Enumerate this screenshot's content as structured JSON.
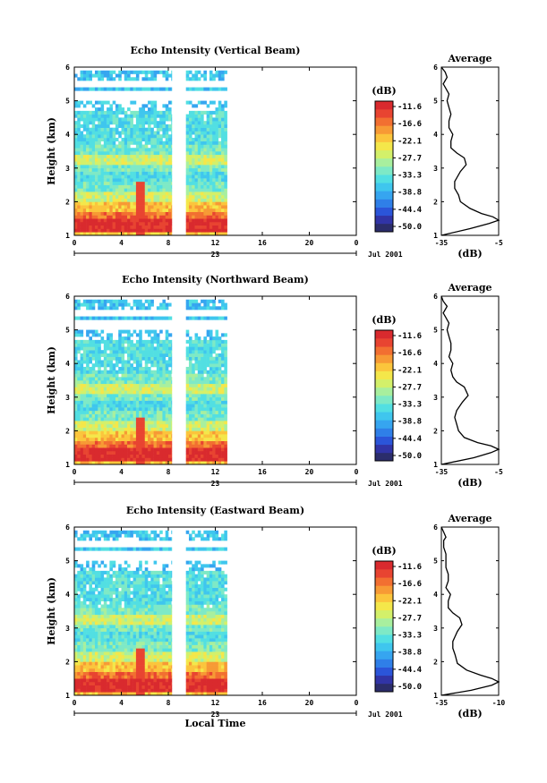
{
  "colors": {
    "colorbar": [
      "#2b2d6b",
      "#3134a6",
      "#2b55d9",
      "#2f7fe8",
      "#36a5f0",
      "#3fc6ee",
      "#52dfe2",
      "#7ee9c6",
      "#a8ef9e",
      "#d3f06a",
      "#f4e74a",
      "#fbc53c",
      "#f79a35",
      "#f26f31",
      "#e84431",
      "#d92a2e"
    ]
  },
  "chart_data": [
    {
      "type": "heatmap",
      "title": "Echo Intensity (Vertical Beam)",
      "ylabel": "Height (km)",
      "xlim": [
        0,
        24
      ],
      "ylim": [
        1,
        6
      ],
      "x_ticks": [
        "0",
        "4",
        "8",
        "12",
        "16",
        "20",
        "0"
      ],
      "y_ticks": [
        "1",
        "2",
        "3",
        "4",
        "5",
        "6"
      ],
      "day_label": "23",
      "date_label": "Jul 2001",
      "data_segments_hours": [
        [
          0,
          8.3
        ],
        [
          9.5,
          13
        ]
      ],
      "colorbar": {
        "unit": "(dB)",
        "labels": [
          "-11.6",
          "-16.6",
          "-22.1",
          "-27.7",
          "-33.3",
          "-38.8",
          "-44.4",
          "-50.0"
        ]
      },
      "profile": {
        "title": "Average",
        "xlabel": "(dB)",
        "x_ticks": [
          "-35",
          "-5"
        ],
        "xlim": [
          -35,
          -5
        ],
        "y_ticks": [
          "1",
          "2",
          "3",
          "4",
          "5",
          "6"
        ],
        "x": [
          -35,
          -20,
          -10,
          -5,
          -8,
          -14,
          -20,
          -25,
          -26,
          -28,
          -28,
          -25,
          -22,
          -23,
          -27,
          -30,
          -30,
          -29,
          -31,
          -31,
          -30,
          -31,
          -32,
          -31,
          -33,
          -34,
          -33,
          -32,
          -33,
          -35
        ],
        "y": [
          1.0,
          1.2,
          1.35,
          1.45,
          1.55,
          1.65,
          1.8,
          2.0,
          2.2,
          2.4,
          2.6,
          2.9,
          3.1,
          3.3,
          3.45,
          3.6,
          3.8,
          4.0,
          4.2,
          4.4,
          4.6,
          4.8,
          5.0,
          5.2,
          5.4,
          5.5,
          5.6,
          5.7,
          5.85,
          6.0
        ]
      }
    },
    {
      "type": "heatmap",
      "title": "Echo Intensity (Northward Beam)",
      "ylabel": "Height (km)",
      "xlim": [
        0,
        24
      ],
      "ylim": [
        1,
        6
      ],
      "x_ticks": [
        "0",
        "4",
        "8",
        "12",
        "16",
        "20",
        "0"
      ],
      "y_ticks": [
        "1",
        "2",
        "3",
        "4",
        "5",
        "6"
      ],
      "day_label": "23",
      "date_label": "Jul 2001",
      "data_segments_hours": [
        [
          0,
          8.3
        ],
        [
          9.5,
          13
        ]
      ],
      "colorbar": {
        "unit": "(dB)",
        "labels": [
          "-11.6",
          "-16.6",
          "-22.1",
          "-27.7",
          "-33.3",
          "-38.8",
          "-44.4",
          "-50.0"
        ]
      },
      "profile": {
        "title": "Average",
        "xlabel": "(dB)",
        "x_ticks": [
          "-35",
          "-5"
        ],
        "xlim": [
          -35,
          -5
        ],
        "y_ticks": [
          "1",
          "2",
          "3",
          "4",
          "5",
          "6"
        ],
        "x": [
          -35,
          -18,
          -9,
          -5,
          -9,
          -16,
          -23,
          -26,
          -27,
          -28,
          -27,
          -24,
          -21,
          -23,
          -27,
          -29,
          -30,
          -29,
          -31,
          -30,
          -30,
          -31,
          -32,
          -31,
          -33,
          -34,
          -33,
          -32,
          -34,
          -35
        ],
        "y": [
          1.0,
          1.2,
          1.35,
          1.45,
          1.55,
          1.65,
          1.8,
          2.0,
          2.2,
          2.4,
          2.6,
          2.85,
          3.05,
          3.3,
          3.45,
          3.6,
          3.8,
          4.0,
          4.2,
          4.4,
          4.6,
          4.8,
          5.0,
          5.2,
          5.4,
          5.5,
          5.6,
          5.7,
          5.85,
          6.0
        ]
      }
    },
    {
      "type": "heatmap",
      "title": "Echo Intensity (Eastward Beam)",
      "ylabel": "Height (km)",
      "xlabel": "Local Time",
      "xlim": [
        0,
        24
      ],
      "ylim": [
        1,
        6
      ],
      "x_ticks": [
        "0",
        "4",
        "8",
        "12",
        "16",
        "20",
        "0"
      ],
      "y_ticks": [
        "1",
        "2",
        "3",
        "4",
        "5",
        "6"
      ],
      "day_label": "23",
      "date_label": "Jul 2001",
      "data_segments_hours": [
        [
          0,
          8.3
        ],
        [
          9.5,
          13
        ]
      ],
      "colorbar": {
        "unit": "(dB)",
        "labels": [
          "-11.6",
          "-16.6",
          "-22.1",
          "-27.7",
          "-33.3",
          "-38.8",
          "-44.4",
          "-50.0"
        ]
      },
      "profile": {
        "title": "Average",
        "xlabel": "(dB)",
        "x_ticks": [
          "-35",
          "-10"
        ],
        "xlim": [
          -35,
          -10
        ],
        "y_ticks": [
          "1",
          "2",
          "3",
          "4",
          "5",
          "6"
        ],
        "x": [
          -35,
          -22,
          -13,
          -10,
          -13,
          -18,
          -24,
          -28,
          -29,
          -30,
          -30,
          -28,
          -26,
          -27,
          -30,
          -32,
          -32,
          -31,
          -33,
          -32,
          -32,
          -33,
          -33,
          -33,
          -34,
          -34,
          -34,
          -33,
          -34,
          -35
        ],
        "y": [
          1.0,
          1.15,
          1.3,
          1.4,
          1.5,
          1.6,
          1.75,
          1.95,
          2.2,
          2.4,
          2.6,
          2.9,
          3.1,
          3.3,
          3.45,
          3.6,
          3.8,
          4.0,
          4.2,
          4.4,
          4.6,
          4.8,
          5.0,
          5.2,
          5.4,
          5.5,
          5.6,
          5.7,
          5.85,
          6.0
        ]
      }
    }
  ]
}
